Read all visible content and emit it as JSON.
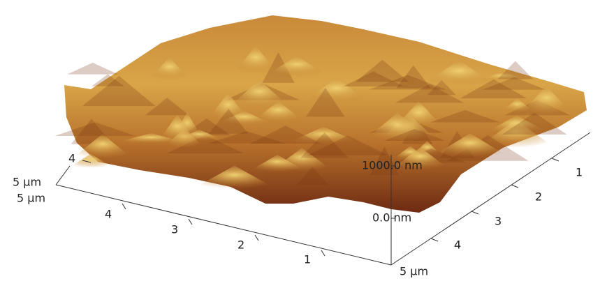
{
  "left_axis": {
    "labels": [
      "4",
      "5 µm",
      "5 µm"
    ]
  },
  "front_axis": {
    "labels": [
      "4",
      "3",
      "2",
      "1"
    ]
  },
  "right_axis": {
    "labels": [
      "5 µm",
      "4",
      "3",
      "2",
      "1"
    ]
  },
  "z_axis": {
    "labels": [
      "1000.0 nm",
      "0.0 nm"
    ]
  }
}
